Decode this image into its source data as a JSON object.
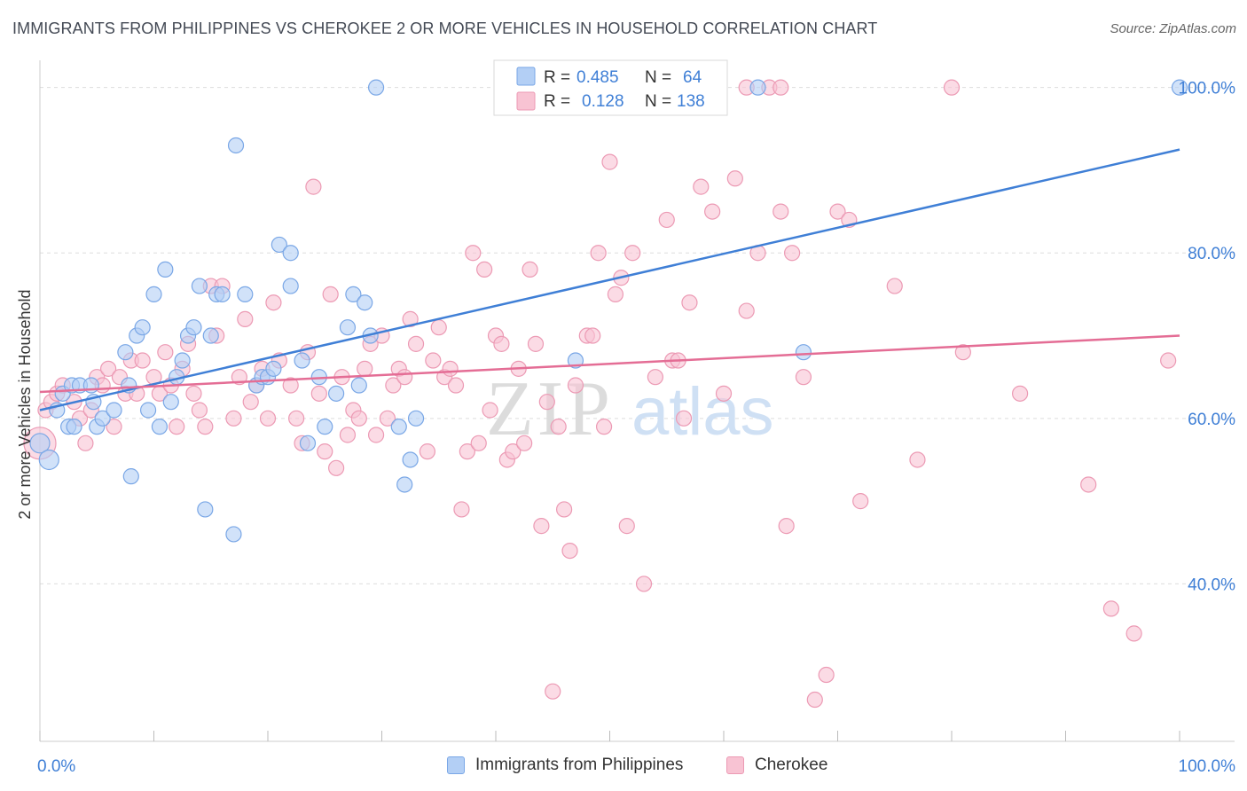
{
  "title": "IMMIGRANTS FROM PHILIPPINES VS CHEROKEE 2 OR MORE VEHICLES IN HOUSEHOLD CORRELATION CHART",
  "source": "Source: ZipAtlas.com",
  "watermark": {
    "zip": "ZIP",
    "atlas": "atlas"
  },
  "colors": {
    "blue_fill": "#b3cff5",
    "blue_stroke": "#7aa7e6",
    "blue_line": "#3f7fd6",
    "pink_fill": "#f8c3d3",
    "pink_stroke": "#ec9ab4",
    "pink_line": "#e46d95",
    "tick_text": "#3f7fd6",
    "grid": "#dddddd"
  },
  "stats_legend": {
    "rows": [
      {
        "r_label": "R =",
        "r_value": "0.485",
        "n_label": "N =",
        "n_value": "64"
      },
      {
        "r_label": "R =",
        "r_value": "0.128",
        "n_label": "N =",
        "n_value": "138"
      }
    ]
  },
  "chart_data": {
    "type": "scatter",
    "title": "IMMIGRANTS FROM PHILIPPINES VS CHEROKEE 2 OR MORE VEHICLES IN HOUSEHOLD CORRELATION CHART",
    "xlabel": "",
    "ylabel": "2 or more Vehicles in Household",
    "xlim": [
      0,
      100
    ],
    "ylim": [
      20,
      102
    ],
    "x_tick_labels": [
      "0.0%",
      "100.0%"
    ],
    "y_ticks": [
      40,
      60,
      80,
      100
    ],
    "y_tick_labels": [
      "40.0%",
      "60.0%",
      "80.0%",
      "100.0%"
    ],
    "grid": true,
    "legend_position": "bottom",
    "series": [
      {
        "name": "Immigrants from Philippines",
        "color": "#b3cff5",
        "trend": {
          "x": [
            0,
            100
          ],
          "y": [
            61.0,
            92.5
          ]
        },
        "points": [
          [
            0,
            57
          ],
          [
            0.8,
            55
          ],
          [
            1.5,
            61
          ],
          [
            2,
            63
          ],
          [
            2.5,
            59
          ],
          [
            2.8,
            64
          ],
          [
            3,
            59
          ],
          [
            3.5,
            64
          ],
          [
            4.5,
            64
          ],
          [
            4.7,
            62
          ],
          [
            5,
            59
          ],
          [
            5.5,
            60
          ],
          [
            6.5,
            61
          ],
          [
            7.5,
            68
          ],
          [
            7.8,
            64
          ],
          [
            8,
            53
          ],
          [
            8.5,
            70
          ],
          [
            9,
            71
          ],
          [
            9.5,
            61
          ],
          [
            10,
            75
          ],
          [
            10.5,
            59
          ],
          [
            11,
            78
          ],
          [
            11.5,
            62
          ],
          [
            12,
            65
          ],
          [
            12.5,
            67
          ],
          [
            13,
            70
          ],
          [
            13.5,
            71
          ],
          [
            14,
            76
          ],
          [
            14.5,
            49
          ],
          [
            15,
            70
          ],
          [
            15.5,
            75
          ],
          [
            16,
            75
          ],
          [
            17,
            46
          ],
          [
            17.2,
            93
          ],
          [
            18,
            75
          ],
          [
            19,
            64
          ],
          [
            19.5,
            65
          ],
          [
            20,
            65
          ],
          [
            20.5,
            66
          ],
          [
            21,
            81
          ],
          [
            22,
            80
          ],
          [
            22,
            76
          ],
          [
            23,
            67
          ],
          [
            23.5,
            57
          ],
          [
            24.5,
            65
          ],
          [
            25,
            59
          ],
          [
            26,
            63
          ],
          [
            27,
            71
          ],
          [
            27.5,
            75
          ],
          [
            28,
            64
          ],
          [
            28.5,
            74
          ],
          [
            29,
            70
          ],
          [
            31.5,
            59
          ],
          [
            32,
            52
          ],
          [
            32.5,
            55
          ],
          [
            33,
            60
          ],
          [
            29.5,
            100
          ],
          [
            47,
            67
          ],
          [
            63,
            100
          ],
          [
            67,
            68
          ],
          [
            100,
            100
          ]
        ]
      },
      {
        "name": "Cherokee",
        "color": "#f8c3d3",
        "trend": {
          "x": [
            0,
            100
          ],
          "y": [
            63.2,
            70.0
          ]
        },
        "points": [
          [
            0,
            57
          ],
          [
            0.5,
            61
          ],
          [
            1,
            62
          ],
          [
            1.5,
            63
          ],
          [
            2,
            64
          ],
          [
            3,
            62
          ],
          [
            3.5,
            60
          ],
          [
            4,
            57
          ],
          [
            4.5,
            61
          ],
          [
            5,
            65
          ],
          [
            5.5,
            64
          ],
          [
            6,
            66
          ],
          [
            6.5,
            59
          ],
          [
            7,
            65
          ],
          [
            7.5,
            63
          ],
          [
            8,
            67
          ],
          [
            8.5,
            63
          ],
          [
            9,
            67
          ],
          [
            10,
            65
          ],
          [
            10.5,
            63
          ],
          [
            11,
            68
          ],
          [
            11.5,
            64
          ],
          [
            12,
            59
          ],
          [
            12.5,
            66
          ],
          [
            13,
            69
          ],
          [
            13.5,
            63
          ],
          [
            14,
            61
          ],
          [
            14.5,
            59
          ],
          [
            15,
            76
          ],
          [
            15.5,
            70
          ],
          [
            16,
            76
          ],
          [
            17,
            60
          ],
          [
            17.5,
            65
          ],
          [
            18,
            72
          ],
          [
            18.5,
            62
          ],
          [
            19,
            64
          ],
          [
            19.5,
            66
          ],
          [
            20,
            60
          ],
          [
            20.5,
            74
          ],
          [
            21,
            67
          ],
          [
            22,
            64
          ],
          [
            22.5,
            60
          ],
          [
            23,
            57
          ],
          [
            23.5,
            68
          ],
          [
            24,
            88
          ],
          [
            24.5,
            63
          ],
          [
            25,
            56
          ],
          [
            25.5,
            75
          ],
          [
            26,
            54
          ],
          [
            26.5,
            65
          ],
          [
            27,
            58
          ],
          [
            27.5,
            61
          ],
          [
            28,
            60
          ],
          [
            28.5,
            66
          ],
          [
            29,
            69
          ],
          [
            29.5,
            58
          ],
          [
            30,
            70
          ],
          [
            30.5,
            60
          ],
          [
            31,
            64
          ],
          [
            31.5,
            66
          ],
          [
            32,
            65
          ],
          [
            32.5,
            72
          ],
          [
            33,
            69
          ],
          [
            34,
            56
          ],
          [
            34.5,
            67
          ],
          [
            35,
            71
          ],
          [
            35.5,
            65
          ],
          [
            36,
            66
          ],
          [
            36.5,
            64
          ],
          [
            37,
            49
          ],
          [
            37.5,
            56
          ],
          [
            38,
            80
          ],
          [
            38.5,
            57
          ],
          [
            39,
            78
          ],
          [
            39.5,
            61
          ],
          [
            40,
            70
          ],
          [
            40.5,
            69
          ],
          [
            41,
            55
          ],
          [
            41.5,
            56
          ],
          [
            42,
            66
          ],
          [
            42.5,
            57
          ],
          [
            43,
            78
          ],
          [
            43.5,
            69
          ],
          [
            44,
            47
          ],
          [
            44.5,
            62
          ],
          [
            45,
            27
          ],
          [
            45.5,
            59
          ],
          [
            46,
            49
          ],
          [
            46.5,
            44
          ],
          [
            47,
            64
          ],
          [
            48,
            70
          ],
          [
            48.5,
            70
          ],
          [
            49,
            80
          ],
          [
            49.5,
            59
          ],
          [
            50,
            91
          ],
          [
            50.5,
            75
          ],
          [
            51,
            77
          ],
          [
            51.5,
            47
          ],
          [
            52,
            80
          ],
          [
            53,
            40
          ],
          [
            54,
            65
          ],
          [
            55,
            84
          ],
          [
            55.5,
            67
          ],
          [
            56,
            67
          ],
          [
            56.5,
            60
          ],
          [
            57,
            74
          ],
          [
            58,
            88
          ],
          [
            59,
            85
          ],
          [
            60,
            63
          ],
          [
            61,
            89
          ],
          [
            62,
            73
          ],
          [
            63,
            80
          ],
          [
            65,
            85
          ],
          [
            65.5,
            47
          ],
          [
            66,
            80
          ],
          [
            67,
            65
          ],
          [
            68,
            26
          ],
          [
            69,
            29
          ],
          [
            70,
            85
          ],
          [
            71,
            84
          ],
          [
            72,
            50
          ],
          [
            75,
            76
          ],
          [
            77,
            55
          ],
          [
            80,
            100
          ],
          [
            81,
            68
          ],
          [
            86,
            63
          ],
          [
            92,
            52
          ],
          [
            94,
            37
          ],
          [
            96,
            34
          ],
          [
            99,
            67
          ],
          [
            62,
            100
          ],
          [
            64,
            100
          ],
          [
            65,
            100
          ]
        ]
      }
    ]
  }
}
